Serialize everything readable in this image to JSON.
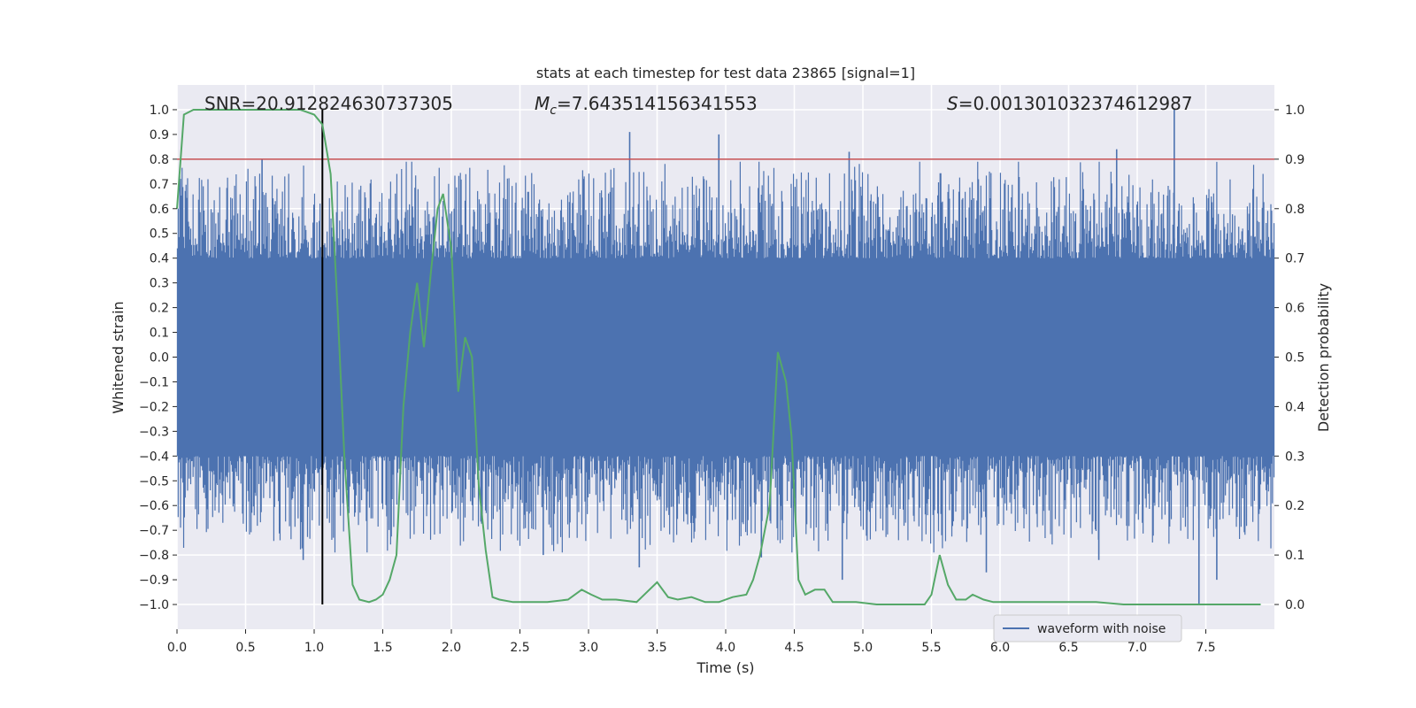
{
  "chart_data": {
    "type": "line",
    "title": "stats at each timestep for test data 23865 [signal=1]",
    "xlabel": "Time (s)",
    "ylabel": "Whitened strain",
    "y2label": "Detection probability",
    "xlim": [
      0.0,
      8.0
    ],
    "ylim": [
      -1.1,
      1.1
    ],
    "y2lim": [
      -0.05,
      1.05
    ],
    "xticks": [
      0.0,
      0.5,
      1.0,
      1.5,
      2.0,
      2.5,
      3.0,
      3.5,
      4.0,
      4.5,
      5.0,
      5.5,
      6.0,
      6.5,
      7.0,
      7.5
    ],
    "xtick_labels": [
      "0.0",
      "0.5",
      "1.0",
      "1.5",
      "2.0",
      "2.5",
      "3.0",
      "3.5",
      "4.0",
      "4.5",
      "5.0",
      "5.5",
      "6.0",
      "6.5",
      "7.0",
      "7.5"
    ],
    "yticks": [
      1.0,
      0.9,
      0.8,
      0.7,
      0.6,
      0.5,
      0.4,
      0.3,
      0.2,
      0.1,
      0.0,
      -0.1,
      -0.2,
      -0.3,
      -0.4,
      -0.5,
      -0.6,
      -0.7,
      -0.8,
      -0.9,
      -1.0
    ],
    "ytick_labels": [
      "1.0",
      "0.9",
      "0.8",
      "0.7",
      "0.6",
      "0.5",
      "0.4",
      "0.3",
      "0.2",
      "0.1",
      "0.0",
      "−0.1",
      "−0.2",
      "−0.3",
      "−0.4",
      "−0.5",
      "−0.6",
      "−0.7",
      "−0.8",
      "−0.9",
      "−1.0"
    ],
    "y2ticks": [
      1.0,
      0.9,
      0.8,
      0.7,
      0.6,
      0.5,
      0.4,
      0.3,
      0.2,
      0.1,
      0.0
    ],
    "y2tick_labels": [
      "1.0",
      "0.9",
      "0.8",
      "0.7",
      "0.6",
      "0.5",
      "0.4",
      "0.3",
      "0.2",
      "0.1",
      "0.0"
    ],
    "annotations": {
      "snr": "SNR=20.912824630737305",
      "mc_symbol": "M",
      "mc_subscript": "c",
      "mc_value": "=7.643514156341553",
      "s_symbol": "S",
      "s_value": "=0.001301032374612987"
    },
    "threshold": {
      "value": 0.9,
      "axis": "right",
      "color": "#c44e52"
    },
    "marker_time": 1.06,
    "legend": {
      "label": "waveform with noise",
      "location": "lower right"
    },
    "series": [
      {
        "name": "waveform with noise",
        "axis": "left",
        "color": "#4c72b0",
        "kind": "dense noise, envelope approx ±0.4 with spikes to ±1.0",
        "core_amplitude": 0.4,
        "peak_events": [
          {
            "t": 3.3,
            "v": 0.91
          },
          {
            "t": 3.95,
            "v": 0.9
          },
          {
            "t": 7.27,
            "v": 1.0
          },
          {
            "t": 6.85,
            "v": 0.84
          },
          {
            "t": 4.9,
            "v": 0.83
          },
          {
            "t": 0.62,
            "v": 0.8
          },
          {
            "t": 7.45,
            "v": -1.0
          },
          {
            "t": 7.58,
            "v": -0.9
          },
          {
            "t": 3.37,
            "v": -0.85
          },
          {
            "t": 5.9,
            "v": -0.87
          },
          {
            "t": 0.92,
            "v": -0.82
          },
          {
            "t": 4.85,
            "v": -0.9
          },
          {
            "t": 4.26,
            "v": -0.81
          },
          {
            "t": 6.72,
            "v": -0.82
          },
          {
            "t": 2.67,
            "v": -0.8
          }
        ]
      },
      {
        "name": "detection probability",
        "axis": "right",
        "color": "#55a868",
        "x": [
          0.0,
          0.05,
          0.12,
          0.2,
          0.4,
          0.6,
          0.8,
          0.9,
          1.0,
          1.06,
          1.12,
          1.17,
          1.22,
          1.28,
          1.33,
          1.4,
          1.45,
          1.5,
          1.55,
          1.6,
          1.65,
          1.7,
          1.75,
          1.8,
          1.85,
          1.9,
          1.94,
          2.0,
          2.05,
          2.1,
          2.15,
          2.2,
          2.25,
          2.3,
          2.35,
          2.45,
          2.55,
          2.7,
          2.85,
          2.95,
          3.02,
          3.1,
          3.2,
          3.35,
          3.5,
          3.58,
          3.65,
          3.75,
          3.85,
          3.95,
          4.05,
          4.15,
          4.2,
          4.25,
          4.32,
          4.38,
          4.44,
          4.48,
          4.53,
          4.58,
          4.65,
          4.72,
          4.78,
          4.85,
          4.95,
          5.1,
          5.25,
          5.45,
          5.5,
          5.56,
          5.62,
          5.68,
          5.75,
          5.8,
          5.88,
          5.95,
          6.05,
          6.15,
          6.3,
          6.4,
          6.5,
          6.7,
          6.9,
          7.0,
          7.2,
          7.45,
          7.9
        ],
        "y": [
          0.8,
          0.99,
          1.0,
          1.0,
          1.0,
          1.0,
          1.0,
          1.0,
          0.99,
          0.97,
          0.87,
          0.6,
          0.3,
          0.04,
          0.01,
          0.005,
          0.01,
          0.02,
          0.05,
          0.1,
          0.4,
          0.55,
          0.65,
          0.52,
          0.67,
          0.8,
          0.83,
          0.72,
          0.43,
          0.54,
          0.5,
          0.24,
          0.11,
          0.015,
          0.01,
          0.005,
          0.005,
          0.005,
          0.01,
          0.03,
          0.02,
          0.01,
          0.01,
          0.005,
          0.045,
          0.015,
          0.01,
          0.015,
          0.005,
          0.005,
          0.015,
          0.02,
          0.05,
          0.1,
          0.2,
          0.51,
          0.45,
          0.34,
          0.05,
          0.02,
          0.03,
          0.03,
          0.005,
          0.005,
          0.005,
          0.0,
          0.0,
          0.0,
          0.02,
          0.1,
          0.04,
          0.01,
          0.01,
          0.02,
          0.01,
          0.005,
          0.005,
          0.005,
          0.005,
          0.005,
          0.005,
          0.005,
          0.0,
          0.0,
          0.0,
          0.0,
          0.0
        ]
      }
    ]
  }
}
